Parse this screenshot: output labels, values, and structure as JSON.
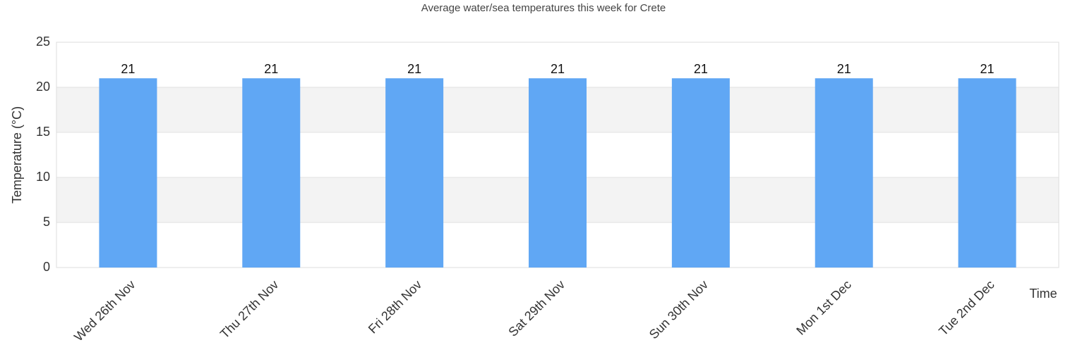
{
  "chart_data": {
    "type": "bar",
    "title": "Average water/sea temperatures this week for Crete",
    "x_label": "Time",
    "y_label": "Temperature (°C)",
    "categories": [
      "Wed 26th Nov",
      "Thu 27th Nov",
      "Fri 28th Nov",
      "Sat 29th Nov",
      "Sun 30th Nov",
      "Mon 1st Dec",
      "Tue 2nd Dec"
    ],
    "values": [
      21,
      21,
      21,
      21,
      21,
      21,
      21
    ],
    "color": "#60a7f4",
    "ylim": [
      0,
      25
    ],
    "yticks": [
      0,
      5,
      10,
      15,
      20,
      25
    ],
    "grid": true
  }
}
